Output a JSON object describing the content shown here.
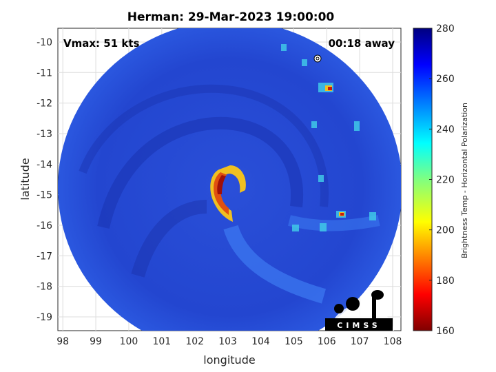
{
  "title": "Herman: 29-Mar-2023 19:00:00",
  "vmax_label": "Vmax: 51 kts",
  "away_label": "00:18 away",
  "logo_text": "CIMSS",
  "colors": {
    "ocean_dark": "#1d36c4",
    "ocean_mid": "#2a55e0",
    "ocean_light": "#3d7bf2",
    "eyewall_red": "#c81a0e",
    "eyewall_yellow": "#f0c020"
  },
  "chart_data": {
    "type": "heatmap",
    "xlabel": "longitude",
    "ylabel": "latitude",
    "x_ticks": [
      "98",
      "99",
      "100",
      "101",
      "102",
      "103",
      "104",
      "105",
      "106",
      "107",
      "108"
    ],
    "y_ticks": [
      "-10",
      "-11",
      "-12",
      "-13",
      "-14",
      "-15",
      "-16",
      "-17",
      "-18",
      "-19"
    ],
    "xlim": [
      97.85,
      108.25
    ],
    "ylim": [
      -19.45,
      -9.55
    ],
    "grid": true,
    "colorbar": {
      "label": "Brightness Temp - Horizontal Polarization",
      "ticks": [
        "280",
        "260",
        "240",
        "220",
        "200",
        "180",
        "160"
      ],
      "range": [
        160,
        280
      ],
      "colormap": "jet"
    }
  }
}
